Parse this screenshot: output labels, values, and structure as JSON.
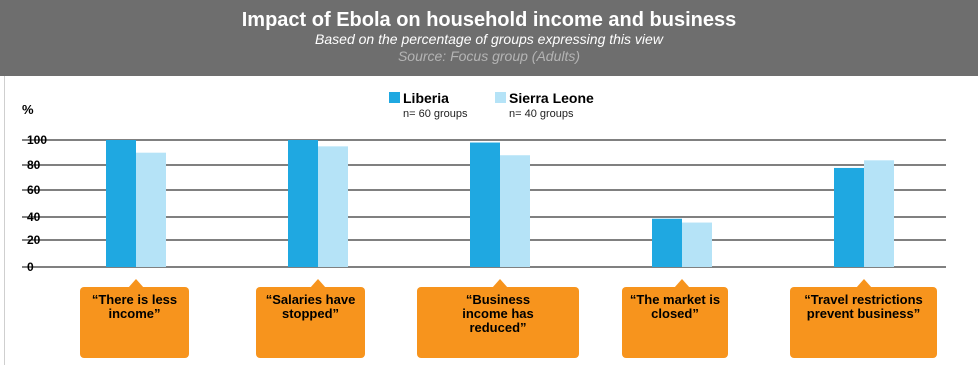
{
  "chart_data": {
    "type": "bar",
    "title": "Impact of Ebola on household income and business",
    "subtitle": "Based on the percentage of groups expressing this view",
    "source": "Source: Focus group (Adults)",
    "ylabel": "%",
    "ylim": [
      0,
      100
    ],
    "y_ticks": [
      "100",
      "80",
      "60",
      "40",
      "20",
      "0"
    ],
    "grid": true,
    "legend_position": "top-center",
    "categories": [
      "“There is less income”",
      "“Salaries have stopped”",
      "“Business income has reduced”",
      "“The market is closed”",
      "“Travel restrictions prevent business”"
    ],
    "series": [
      {
        "name": "Liberia",
        "note": "n= 60 groups",
        "color": "#1fa8e1",
        "values": [
          100,
          100,
          98,
          38,
          78
        ]
      },
      {
        "name": "Sierra Leone",
        "note": "n= 40 groups",
        "color": "#b5e3f7",
        "values": [
          90,
          95,
          88,
          35,
          84
        ]
      }
    ],
    "callout_color": "#f7941d",
    "callout_lines": [
      [
        "“There is less",
        "income”"
      ],
      [
        "“Salaries have",
        "stopped”"
      ],
      [
        "“Business",
        "income has",
        "reduced”"
      ],
      [
        "“The market is",
        "closed”"
      ],
      [
        "“Travel restrictions",
        "prevent business”"
      ]
    ]
  }
}
